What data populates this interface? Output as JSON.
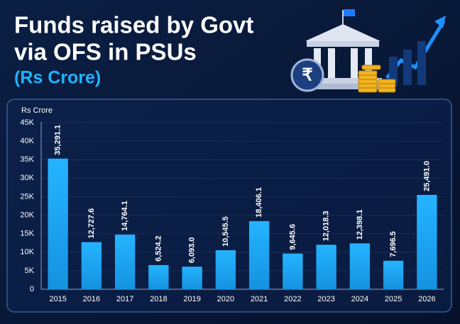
{
  "chart_data": {
    "type": "bar",
    "title": [
      "Funds raised by Govt",
      "via OFS in PSUs"
    ],
    "subtitle": "(Rs Crore)",
    "y_axis_label": "Rs Crore",
    "categories": [
      "2015",
      "2016",
      "2017",
      "2018",
      "2019",
      "2020",
      "2021",
      "2022",
      "2023",
      "2024",
      "2025",
      "2026"
    ],
    "values": [
      35291.1,
      12727.6,
      14764.1,
      6524.2,
      6093.0,
      10545.5,
      18406.1,
      9645.6,
      12018.3,
      12398.1,
      7696.5,
      25491.0
    ],
    "value_labels": [
      "35,291.1",
      "12,727.6",
      "14,764.1",
      "6,524.2",
      "6,093.0",
      "10,545.5",
      "18,406.1",
      "9,645.6",
      "12,018.3",
      "12,398.1",
      "7,696.5",
      "25,491.0"
    ],
    "color": "#1aa6f2",
    "ylim": [
      0,
      45000
    ],
    "yticks": [
      0,
      {
        "value": 5000,
        "label": "5K"
      },
      {
        "value": 10000,
        "label": "10K"
      },
      {
        "value": 15000,
        "label": "15K"
      },
      {
        "value": 20000,
        "label": "20K"
      },
      {
        "value": 25000,
        "label": "25K"
      },
      {
        "value": 30000,
        "label": "30K"
      },
      {
        "value": 35000,
        "label": "35K"
      },
      {
        "value": 40000,
        "label": "40K"
      },
      {
        "value": 45000,
        "label": "45K"
      }
    ],
    "grid": true
  }
}
